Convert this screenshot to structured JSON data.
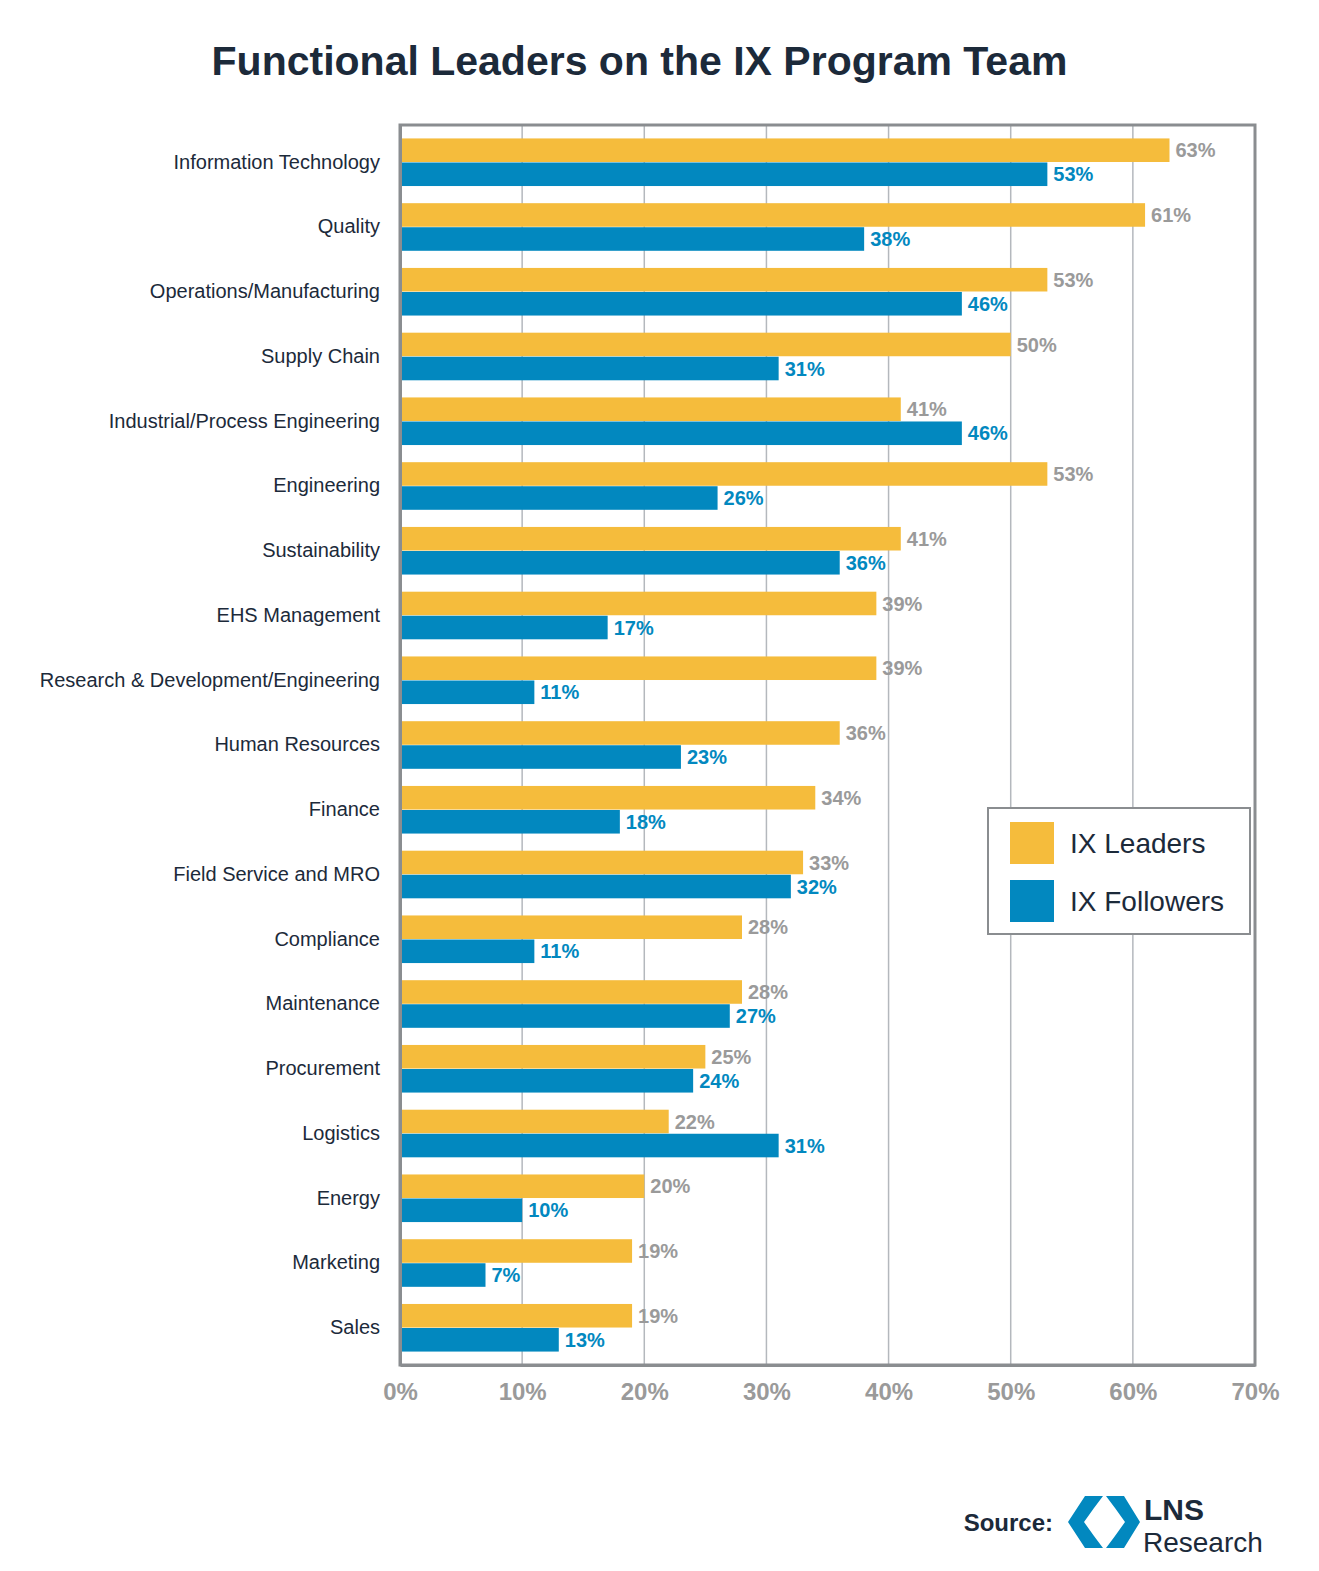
{
  "chart_data": {
    "type": "bar",
    "orientation": "horizontal",
    "title": "Functional Leaders on the IX Program Team",
    "categories": [
      "Information Technology",
      "Quality",
      "Operations/Manufacturing",
      "Supply Chain",
      "Industrial/Process Engineering",
      "Engineering",
      "Sustainability",
      "EHS Management",
      "Research & Development/Engineering",
      "Human Resources",
      "Finance",
      "Field Service and MRO",
      "Compliance",
      "Maintenance",
      "Procurement",
      "Logistics",
      "Energy",
      "Marketing",
      "Sales"
    ],
    "series": [
      {
        "name": "IX Leaders",
        "color": "#f5bc3c",
        "values": [
          63,
          61,
          53,
          50,
          41,
          53,
          41,
          39,
          39,
          36,
          34,
          33,
          28,
          28,
          25,
          22,
          20,
          19,
          19
        ],
        "value_labels": [
          "63%",
          "61%",
          "53%",
          "50%",
          "41%",
          "53%",
          "41%",
          "39%",
          "39%",
          "36%",
          "34%",
          "33%",
          "28%",
          "28%",
          "25%",
          "22%",
          "20%",
          "19%",
          "19%"
        ]
      },
      {
        "name": "IX Followers",
        "color": "#0288bf",
        "values": [
          53,
          38,
          46,
          31,
          46,
          26,
          36,
          17,
          11,
          23,
          18,
          32,
          11,
          27,
          24,
          31,
          10,
          7,
          13
        ],
        "value_labels": [
          "53%",
          "38%",
          "46%",
          "31%",
          "46%",
          "26%",
          "36%",
          "17%",
          "11%",
          "23%",
          "18%",
          "32%",
          "11%",
          "27%",
          "24%",
          "31%",
          "10%",
          "7%",
          "13%"
        ]
      }
    ],
    "xlim": [
      0,
      70
    ],
    "xticks": [
      {
        "value": 0,
        "label": "0%"
      },
      {
        "value": 10,
        "label": "10%"
      },
      {
        "value": 20,
        "label": "20%"
      },
      {
        "value": 30,
        "label": "30%"
      },
      {
        "value": 40,
        "label": "40%"
      },
      {
        "value": 50,
        "label": "50%"
      },
      {
        "value": 60,
        "label": "60%"
      },
      {
        "value": 70,
        "label": "70%"
      }
    ],
    "grid": true,
    "data_labels": true,
    "legend": "right",
    "annotations": [
      "Source:",
      "LNS",
      "Research"
    ]
  }
}
